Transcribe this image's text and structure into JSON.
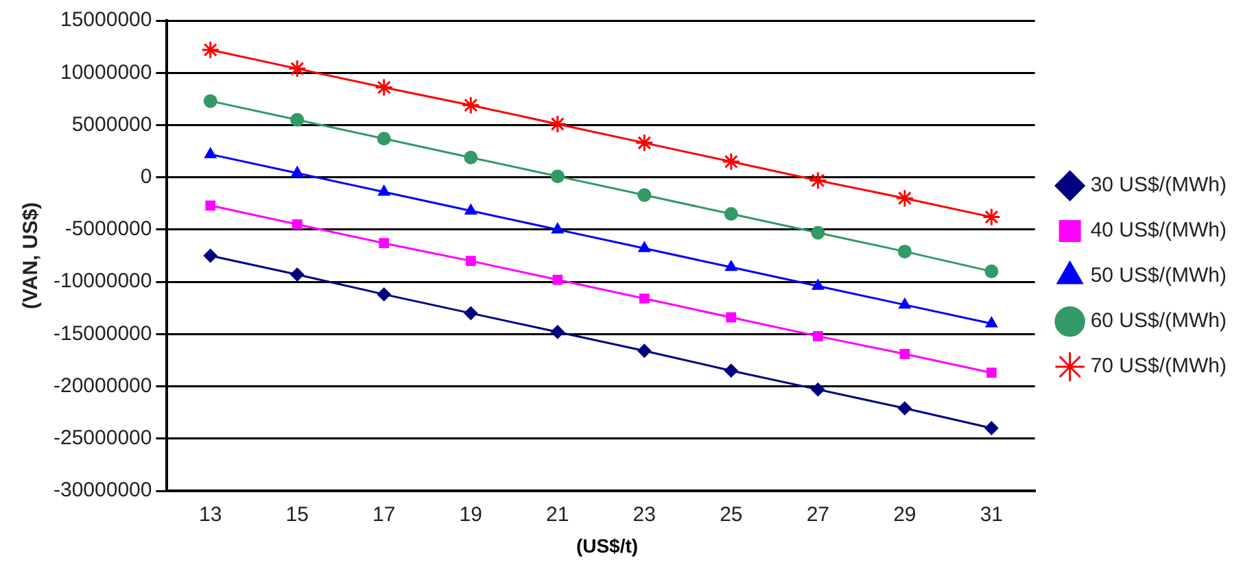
{
  "chart_data": {
    "type": "line",
    "xlabel": "(US$/t)",
    "ylabel": "(VAN, US$)",
    "categories": [
      "13",
      "15",
      "17",
      "19",
      "21",
      "23",
      "25",
      "27",
      "29",
      "31"
    ],
    "ylim": [
      -30000000,
      15000000
    ],
    "yticks": [
      -30000000,
      -25000000,
      -20000000,
      -15000000,
      -10000000,
      -5000000,
      0,
      5000000,
      10000000,
      15000000
    ],
    "grid": "y",
    "legend": "right",
    "series": [
      {
        "name": "30 US$/(MWh)",
        "color": "#000080",
        "marker": "diamond",
        "values": [
          -7500000,
          -9300000,
          -11200000,
          -13000000,
          -14800000,
          -16600000,
          -18500000,
          -20300000,
          -22100000,
          -24000000
        ]
      },
      {
        "name": "40 US$/(MWh)",
        "color": "#ff00ff",
        "marker": "square",
        "values": [
          -2700000,
          -4500000,
          -6300000,
          -8000000,
          -9800000,
          -11600000,
          -13400000,
          -15200000,
          -16900000,
          -18700000
        ]
      },
      {
        "name": "50 US$/(MWh)",
        "color": "#0000ff",
        "marker": "triangle",
        "values": [
          2200000,
          400000,
          -1400000,
          -3200000,
          -5000000,
          -6800000,
          -8600000,
          -10400000,
          -12200000,
          -14000000
        ]
      },
      {
        "name": "60 US$/(MWh)",
        "color": "#339966",
        "marker": "circle",
        "values": [
          7300000,
          5500000,
          3700000,
          1900000,
          100000,
          -1700000,
          -3500000,
          -5300000,
          -7100000,
          -9000000
        ]
      },
      {
        "name": "70 US$/(MWh)",
        "color": "#ff0000",
        "marker": "cross",
        "values": [
          12200000,
          10400000,
          8600000,
          6900000,
          5100000,
          3300000,
          1500000,
          -300000,
          -2000000,
          -3800000
        ]
      }
    ]
  }
}
